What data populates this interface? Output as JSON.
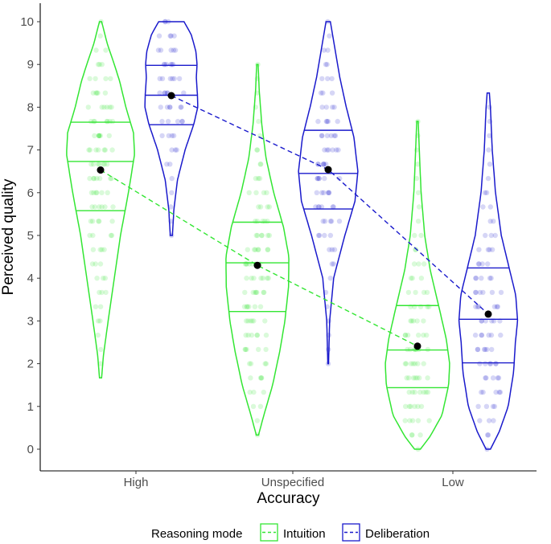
{
  "chart_data": {
    "type": "violin",
    "xlabel": "Accuracy",
    "ylabel": "Perceived quality",
    "categories": [
      "High",
      "Unspecified",
      "Low"
    ],
    "ylim": [
      -0.5,
      10.4
    ],
    "yticks": [
      "0",
      "1",
      "2",
      "3",
      "4",
      "5",
      "6",
      "7",
      "8",
      "9",
      "10"
    ],
    "grid": false,
    "legend": {
      "title": "Reasoning mode",
      "position": "bottom",
      "entries": [
        "Intuition",
        "Deliberation"
      ]
    },
    "series": [
      {
        "name": "Intuition",
        "color": "#33e633",
        "line": "dashed",
        "means": [
          6.53,
          4.3,
          2.41
        ],
        "quartiles": [
          [
            5.58,
            6.73,
            7.65
          ],
          [
            3.22,
            4.36,
            5.31
          ],
          [
            1.44,
            2.32,
            3.36
          ]
        ],
        "range": [
          [
            1.67,
            10.0
          ],
          [
            0.33,
            9.0
          ],
          [
            0.0,
            7.67
          ]
        ],
        "density": [
          [
            [
              1.67,
              0.03
            ],
            [
              2.2,
              0.08
            ],
            [
              3.0,
              0.21
            ],
            [
              4.0,
              0.38
            ],
            [
              5.0,
              0.55
            ],
            [
              6.0,
              0.77
            ],
            [
              6.9,
              0.94
            ],
            [
              7.4,
              0.91
            ],
            [
              8.0,
              0.7
            ],
            [
              8.6,
              0.53
            ],
            [
              9.0,
              0.38
            ],
            [
              9.5,
              0.18
            ],
            [
              10.0,
              0.03
            ]
          ],
          [
            [
              0.33,
              0.03
            ],
            [
              0.8,
              0.18
            ],
            [
              1.5,
              0.42
            ],
            [
              2.3,
              0.62
            ],
            [
              3.0,
              0.76
            ],
            [
              3.8,
              0.86
            ],
            [
              4.5,
              0.87
            ],
            [
              5.2,
              0.72
            ],
            [
              6.0,
              0.45
            ],
            [
              6.8,
              0.24
            ],
            [
              7.6,
              0.12
            ],
            [
              8.4,
              0.05
            ],
            [
              9.0,
              0.02
            ]
          ],
          [
            [
              0.0,
              0.08
            ],
            [
              0.3,
              0.35
            ],
            [
              0.8,
              0.68
            ],
            [
              1.5,
              0.86
            ],
            [
              2.0,
              0.89
            ],
            [
              2.6,
              0.79
            ],
            [
              3.3,
              0.6
            ],
            [
              4.2,
              0.35
            ],
            [
              5.0,
              0.2
            ],
            [
              6.0,
              0.1
            ],
            [
              7.0,
              0.05
            ],
            [
              7.67,
              0.02
            ]
          ]
        ]
      },
      {
        "name": "Deliberation",
        "color": "#1a1acc",
        "line": "dashed",
        "means": [
          8.27,
          6.54,
          3.16
        ],
        "quartiles": [
          [
            7.59,
            8.28,
            8.98
          ],
          [
            5.62,
            6.45,
            7.46
          ],
          [
            2.02,
            3.04,
            4.24
          ]
        ],
        "range": [
          [
            5.0,
            10.0
          ],
          [
            2.0,
            10.0
          ],
          [
            0.0,
            8.33
          ]
        ],
        "density": [
          [
            [
              5.0,
              0.03
            ],
            [
              5.6,
              0.07
            ],
            [
              6.3,
              0.17
            ],
            [
              7.0,
              0.38
            ],
            [
              7.6,
              0.62
            ],
            [
              8.0,
              0.73
            ],
            [
              8.3,
              0.72
            ],
            [
              8.7,
              0.69
            ],
            [
              9.0,
              0.71
            ],
            [
              9.3,
              0.68
            ],
            [
              9.7,
              0.55
            ],
            [
              10.0,
              0.35
            ]
          ],
          [
            [
              2.0,
              0.01
            ],
            [
              3.0,
              0.04
            ],
            [
              4.0,
              0.15
            ],
            [
              5.0,
              0.46
            ],
            [
              5.8,
              0.74
            ],
            [
              6.5,
              0.82
            ],
            [
              7.3,
              0.71
            ],
            [
              8.0,
              0.5
            ],
            [
              8.7,
              0.32
            ],
            [
              9.4,
              0.18
            ],
            [
              10.0,
              0.06
            ]
          ],
          [
            [
              0.0,
              0.06
            ],
            [
              0.4,
              0.3
            ],
            [
              1.0,
              0.55
            ],
            [
              1.8,
              0.7
            ],
            [
              2.5,
              0.75
            ],
            [
              3.0,
              0.81
            ],
            [
              3.6,
              0.76
            ],
            [
              4.3,
              0.56
            ],
            [
              5.0,
              0.36
            ],
            [
              6.0,
              0.2
            ],
            [
              7.0,
              0.11
            ],
            [
              8.0,
              0.06
            ],
            [
              8.33,
              0.03
            ]
          ]
        ]
      }
    ]
  }
}
